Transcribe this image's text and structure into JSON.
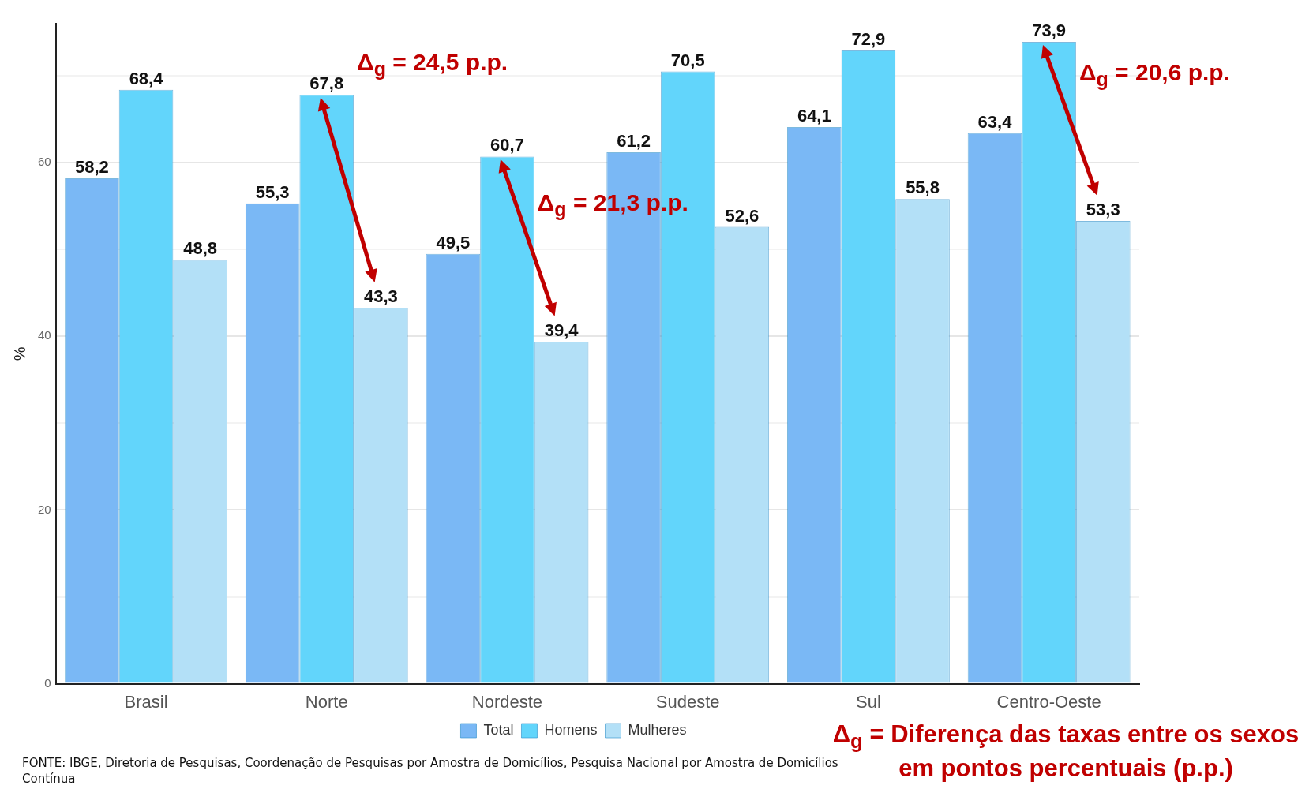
{
  "chart_data": {
    "type": "bar",
    "ylabel": "%",
    "categories": [
      "Brasil",
      "Norte",
      "Nordeste",
      "Sudeste",
      "Sul",
      "Centro-Oeste"
    ],
    "series": [
      {
        "name": "Total",
        "color": "#7ab8f5",
        "values": [
          58.2,
          55.3,
          49.5,
          61.2,
          64.1,
          63.4
        ],
        "value_labels": [
          "58,2",
          "55,3",
          "49,5",
          "61,2",
          "64,1",
          "63,4"
        ]
      },
      {
        "name": "Homens",
        "color": "#62d5fb",
        "values": [
          68.4,
          67.8,
          60.7,
          70.5,
          72.9,
          73.9
        ],
        "value_labels": [
          "68,4",
          "67,8",
          "60,7",
          "70,5",
          "72,9",
          "73,9"
        ]
      },
      {
        "name": "Mulheres",
        "color": "#b3e0f7",
        "values": [
          48.8,
          43.3,
          39.4,
          52.6,
          55.8,
          53.3
        ],
        "value_labels": [
          "48,8",
          "43,3",
          "39,4",
          "52,6",
          "55,8",
          "53,3"
        ]
      }
    ],
    "ylim": [
      0,
      76
    ],
    "yticks": [
      0,
      {
        "value": 10,
        "label": null
      },
      20,
      {
        "value": 30,
        "label": null
      },
      40,
      {
        "value": 50,
        "label": null
      },
      60,
      {
        "value": 70,
        "label": null
      }
    ],
    "grid": "y",
    "legend": "bottom",
    "annotations": [
      "Δ$_{g}$ = 24,5 p.p.",
      "Δ$_{g}$ = 21,3 p.p.",
      "Δ$_{g}$ = 20,6 p.p.",
      "Δ$_{g}$ = Diferença das taxas entre os sexos em pontos percentuais (p.p.)",
      "FONTE: IBGE, Diretoria de Pesquisas, Coordenação de Pesquisas por Amostra de Domicílios, Pesquisa Nacional por Amostra de Domicílios Contínua"
    ]
  }
}
